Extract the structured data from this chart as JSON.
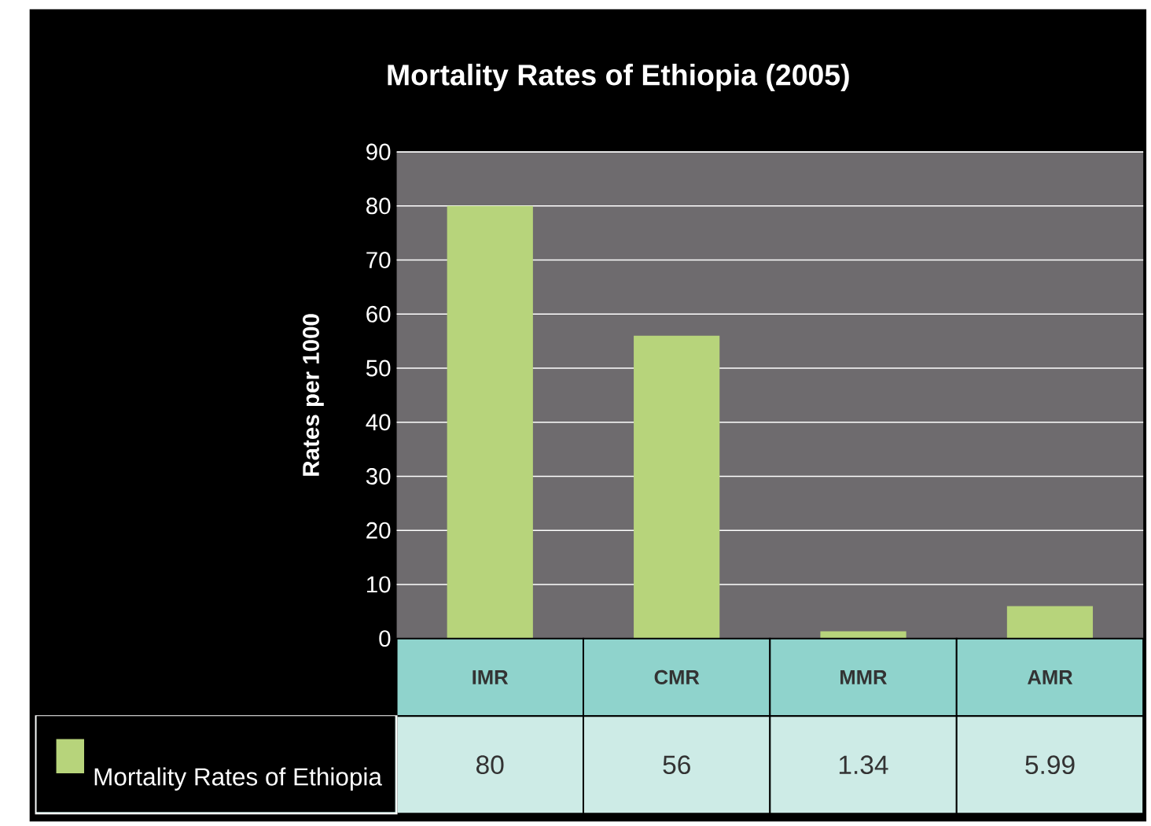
{
  "chart_data": {
    "type": "bar",
    "title": "Mortality Rates of Ethiopia (2005)",
    "ylabel": "Rates per 1000",
    "categories": [
      "IMR",
      "CMR",
      "MMR",
      "AMR"
    ],
    "series": [
      {
        "name": "Mortality Rates of Ethiopia",
        "color": "#b7d47b",
        "values": [
          80,
          56,
          1.34,
          5.99
        ]
      }
    ],
    "ylim": [
      0,
      90
    ],
    "yticks": [
      0,
      10,
      20,
      30,
      40,
      50,
      60,
      70,
      80,
      90
    ],
    "grid": "y",
    "legend": "bottom left",
    "data_labels": true
  }
}
